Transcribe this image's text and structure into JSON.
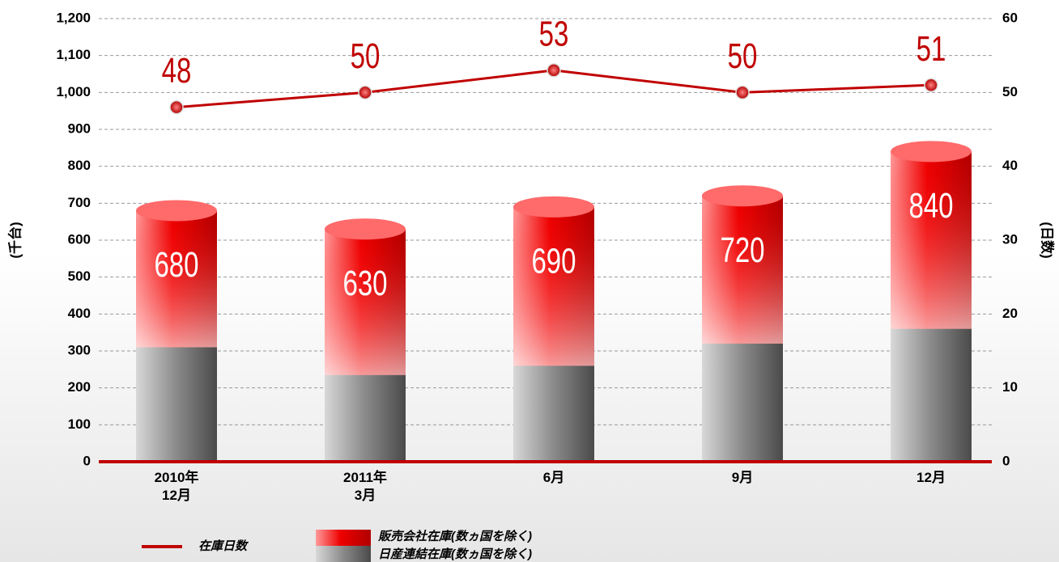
{
  "chart_data": {
    "type": "bar",
    "categories": [
      "2010年\n12月",
      "2011年\n3月",
      "6月",
      "9月",
      "12月"
    ],
    "series": [
      {
        "name": "日産連結在庫(数ヵ国を除く)",
        "color": "#7a7a7a",
        "values": [
          310,
          235,
          260,
          320,
          360
        ]
      },
      {
        "name": "販売会社在庫(数ヵ国を除く)",
        "color": "#e00000",
        "values": [
          370,
          395,
          430,
          400,
          480
        ]
      },
      {
        "name": "在庫日数",
        "color": "#c00000",
        "axis": "y2",
        "type": "line",
        "values": [
          48,
          50,
          53,
          50,
          51
        ]
      }
    ],
    "totals": [
      680,
      630,
      690,
      720,
      840
    ],
    "ylabel": "(千台)",
    "y2label": "(日数)",
    "ylim": [
      0,
      1200
    ],
    "yticks": [
      0,
      100,
      200,
      300,
      400,
      500,
      600,
      700,
      800,
      900,
      {
        "value": 1000,
        "label": "1,000"
      },
      {
        "value": 1100,
        "label": "1,100"
      },
      {
        "value": 1200,
        "label": "1,200"
      }
    ],
    "y2lim": [
      0,
      60
    ],
    "y2ticks": [
      0,
      10,
      20,
      30,
      40,
      50,
      60
    ],
    "grid": true
  }
}
